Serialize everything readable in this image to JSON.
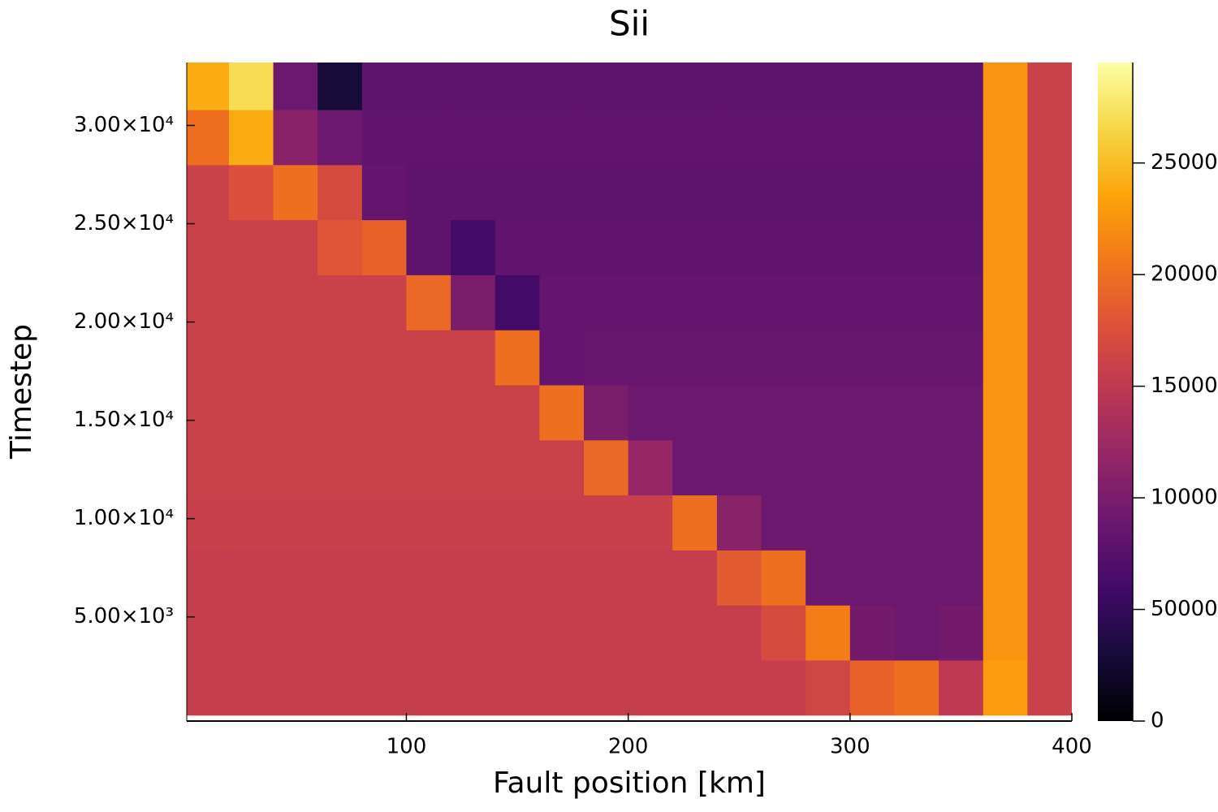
{
  "chart_data": {
    "type": "heatmap",
    "title": "Sii",
    "xlabel": "Fault position [km]",
    "ylabel": "Timestep",
    "colormap": "inferno",
    "x": [
      10,
      30,
      50,
      70,
      90,
      110,
      130,
      150,
      170,
      190,
      210,
      230,
      250,
      270,
      290,
      310,
      330,
      350,
      370,
      390
    ],
    "y": [
      1400,
      4200,
      7000,
      9800,
      12600,
      15400,
      18200,
      21000,
      23800,
      26600,
      29400,
      32200
    ],
    "z": [
      [
        155000,
        155000,
        155000,
        155000,
        155000,
        155000,
        155000,
        155000,
        155000,
        155000,
        155000,
        155000,
        155000,
        155000,
        165000,
        190000,
        200000,
        150000,
        230000,
        160000
      ],
      [
        155000,
        155000,
        155000,
        155000,
        155000,
        155000,
        155000,
        155000,
        155000,
        155000,
        155000,
        155000,
        155000,
        170000,
        210000,
        95000,
        90000,
        95000,
        225000,
        160000
      ],
      [
        155000,
        155000,
        155000,
        155000,
        155000,
        155000,
        155000,
        155000,
        155000,
        155000,
        155000,
        155000,
        185000,
        200000,
        90000,
        90000,
        90000,
        90000,
        225000,
        160000
      ],
      [
        158000,
        158000,
        158000,
        158000,
        158000,
        158000,
        158000,
        158000,
        158000,
        158000,
        158000,
        200000,
        110000,
        90000,
        90000,
        90000,
        90000,
        90000,
        225000,
        160000
      ],
      [
        160000,
        160000,
        160000,
        160000,
        160000,
        160000,
        160000,
        160000,
        160000,
        195000,
        120000,
        90000,
        90000,
        90000,
        90000,
        90000,
        90000,
        90000,
        225000,
        160000
      ],
      [
        160000,
        160000,
        160000,
        160000,
        160000,
        160000,
        160000,
        160000,
        200000,
        100000,
        90000,
        90000,
        90000,
        90000,
        90000,
        90000,
        90000,
        90000,
        225000,
        160000
      ],
      [
        160000,
        160000,
        160000,
        160000,
        160000,
        160000,
        160000,
        200000,
        85000,
        88000,
        88000,
        88000,
        88000,
        88000,
        88000,
        88000,
        88000,
        88000,
        225000,
        160000
      ],
      [
        160000,
        160000,
        160000,
        160000,
        160000,
        195000,
        100000,
        60000,
        85000,
        85000,
        85000,
        85000,
        85000,
        85000,
        85000,
        85000,
        85000,
        85000,
        225000,
        160000
      ],
      [
        160000,
        160000,
        160000,
        180000,
        190000,
        80000,
        60000,
        82000,
        82000,
        82000,
        82000,
        82000,
        82000,
        82000,
        82000,
        82000,
        82000,
        82000,
        225000,
        160000
      ],
      [
        160000,
        175000,
        200000,
        170000,
        85000,
        80000,
        80000,
        80000,
        80000,
        80000,
        80000,
        80000,
        80000,
        80000,
        80000,
        80000,
        80000,
        80000,
        225000,
        160000
      ],
      [
        200000,
        240000,
        110000,
        90000,
        82000,
        82000,
        82000,
        82000,
        82000,
        82000,
        82000,
        82000,
        82000,
        82000,
        82000,
        82000,
        82000,
        82000,
        225000,
        160000
      ],
      [
        240000,
        270000,
        90000,
        30000,
        80000,
        80000,
        80000,
        80000,
        80000,
        80000,
        80000,
        80000,
        80000,
        80000,
        80000,
        80000,
        80000,
        80000,
        225000,
        160000
      ]
    ],
    "xlim": [
      1,
      400
    ],
    "xticks": [
      100,
      200,
      300,
      400
    ],
    "ylim": [
      -300,
      33200
    ],
    "yticks": [
      {
        "value": 5000,
        "label": "5.00×10³"
      },
      {
        "value": 10000,
        "label": "1.00×10⁴"
      },
      {
        "value": 15000,
        "label": "1.50×10⁴"
      },
      {
        "value": 20000,
        "label": "2.00×10⁴"
      },
      {
        "value": 25000,
        "label": "2.50×10⁴"
      },
      {
        "value": 30000,
        "label": "3.00×10⁴"
      }
    ],
    "zlim": [
      0,
      295000
    ],
    "zticks": [
      0,
      50000,
      100000,
      150000,
      200000,
      250000
    ]
  }
}
